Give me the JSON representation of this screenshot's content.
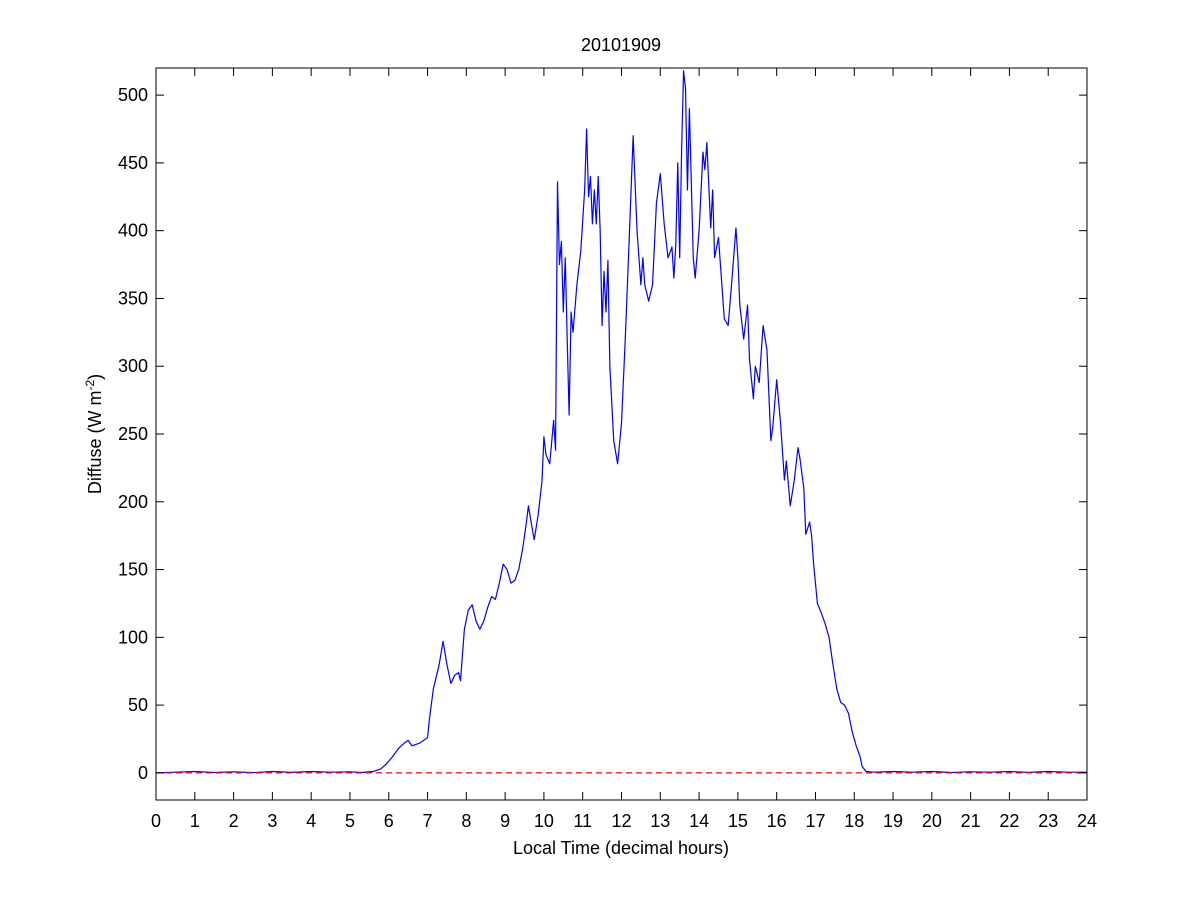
{
  "chart_data": {
    "type": "line",
    "title": "20101909",
    "xlabel": "Local Time (decimal hours)",
    "ylabel": "Diffuse (W m",
    "ylabel_sup": "-2",
    "ylabel_close": ")",
    "xlim": [
      0,
      24
    ],
    "ylim": [
      -20,
      520
    ],
    "xticks": [
      0,
      1,
      2,
      3,
      4,
      5,
      6,
      7,
      8,
      9,
      10,
      11,
      12,
      13,
      14,
      15,
      16,
      17,
      18,
      19,
      20,
      21,
      22,
      23,
      24
    ],
    "yticks": [
      0,
      50,
      100,
      150,
      200,
      250,
      300,
      350,
      400,
      450,
      500
    ],
    "grid": false,
    "legend": "none",
    "colors": {
      "series": "#0000ff",
      "reference": "#ff0000"
    },
    "series": [
      {
        "points": [
          [
            0,
            0
          ],
          [
            0.5,
            0.5
          ],
          [
            1,
            1
          ],
          [
            1.5,
            0.3
          ],
          [
            2,
            0.8
          ],
          [
            2.5,
            0.2
          ],
          [
            3,
            1
          ],
          [
            3.5,
            0.4
          ],
          [
            4,
            1
          ],
          [
            4.5,
            0.5
          ],
          [
            5,
            0.8
          ],
          [
            5.3,
            0.3
          ],
          [
            5.6,
            1
          ],
          [
            5.8,
            3
          ],
          [
            5.95,
            7
          ],
          [
            6.1,
            12
          ],
          [
            6.25,
            18
          ],
          [
            6.4,
            22
          ],
          [
            6.5,
            24
          ],
          [
            6.6,
            20
          ],
          [
            6.8,
            22
          ],
          [
            7,
            26
          ],
          [
            7.05,
            40
          ],
          [
            7.15,
            62
          ],
          [
            7.3,
            80
          ],
          [
            7.4,
            97
          ],
          [
            7.5,
            80
          ],
          [
            7.6,
            66
          ],
          [
            7.7,
            72
          ],
          [
            7.8,
            74
          ],
          [
            7.85,
            68
          ],
          [
            7.95,
            106
          ],
          [
            8.05,
            120
          ],
          [
            8.15,
            124
          ],
          [
            8.25,
            112
          ],
          [
            8.35,
            106
          ],
          [
            8.45,
            112
          ],
          [
            8.55,
            122
          ],
          [
            8.65,
            130
          ],
          [
            8.75,
            128
          ],
          [
            8.85,
            140
          ],
          [
            8.95,
            154
          ],
          [
            9.05,
            150
          ],
          [
            9.15,
            140
          ],
          [
            9.25,
            142
          ],
          [
            9.35,
            150
          ],
          [
            9.45,
            165
          ],
          [
            9.55,
            185
          ],
          [
            9.6,
            197
          ],
          [
            9.7,
            180
          ],
          [
            9.75,
            172
          ],
          [
            9.85,
            190
          ],
          [
            9.95,
            215
          ],
          [
            10.0,
            248
          ],
          [
            10.05,
            235
          ],
          [
            10.15,
            228
          ],
          [
            10.25,
            260
          ],
          [
            10.3,
            238
          ],
          [
            10.35,
            436
          ],
          [
            10.4,
            375
          ],
          [
            10.45,
            392
          ],
          [
            10.5,
            340
          ],
          [
            10.55,
            380
          ],
          [
            10.6,
            320
          ],
          [
            10.65,
            264
          ],
          [
            10.7,
            340
          ],
          [
            10.75,
            325
          ],
          [
            10.85,
            360
          ],
          [
            10.95,
            385
          ],
          [
            11.05,
            430
          ],
          [
            11.1,
            475
          ],
          [
            11.15,
            425
          ],
          [
            11.2,
            440
          ],
          [
            11.25,
            405
          ],
          [
            11.3,
            430
          ],
          [
            11.35,
            405
          ],
          [
            11.4,
            440
          ],
          [
            11.45,
            400
          ],
          [
            11.5,
            330
          ],
          [
            11.55,
            370
          ],
          [
            11.6,
            340
          ],
          [
            11.65,
            378
          ],
          [
            11.7,
            300
          ],
          [
            11.8,
            245
          ],
          [
            11.9,
            228
          ],
          [
            12.0,
            258
          ],
          [
            12.1,
            322
          ],
          [
            12.2,
            395
          ],
          [
            12.3,
            470
          ],
          [
            12.4,
            400
          ],
          [
            12.5,
            360
          ],
          [
            12.55,
            380
          ],
          [
            12.6,
            360
          ],
          [
            12.7,
            348
          ],
          [
            12.8,
            360
          ],
          [
            12.9,
            420
          ],
          [
            13.0,
            442
          ],
          [
            13.1,
            405
          ],
          [
            13.2,
            380
          ],
          [
            13.3,
            388
          ],
          [
            13.35,
            365
          ],
          [
            13.4,
            390
          ],
          [
            13.45,
            450
          ],
          [
            13.5,
            380
          ],
          [
            13.55,
            460
          ],
          [
            13.6,
            518
          ],
          [
            13.65,
            505
          ],
          [
            13.7,
            430
          ],
          [
            13.75,
            490
          ],
          [
            13.85,
            380
          ],
          [
            13.9,
            365
          ],
          [
            14.0,
            400
          ],
          [
            14.1,
            458
          ],
          [
            14.15,
            445
          ],
          [
            14.2,
            465
          ],
          [
            14.3,
            402
          ],
          [
            14.35,
            430
          ],
          [
            14.4,
            380
          ],
          [
            14.5,
            395
          ],
          [
            14.6,
            355
          ],
          [
            14.65,
            335
          ],
          [
            14.75,
            330
          ],
          [
            14.85,
            365
          ],
          [
            14.95,
            402
          ],
          [
            15.0,
            380
          ],
          [
            15.05,
            345
          ],
          [
            15.15,
            320
          ],
          [
            15.25,
            345
          ],
          [
            15.3,
            305
          ],
          [
            15.4,
            276
          ],
          [
            15.45,
            300
          ],
          [
            15.55,
            288
          ],
          [
            15.65,
            330
          ],
          [
            15.75,
            312
          ],
          [
            15.85,
            245
          ],
          [
            15.9,
            255
          ],
          [
            16.0,
            290
          ],
          [
            16.1,
            258
          ],
          [
            16.2,
            216
          ],
          [
            16.25,
            230
          ],
          [
            16.35,
            197
          ],
          [
            16.45,
            215
          ],
          [
            16.55,
            240
          ],
          [
            16.6,
            232
          ],
          [
            16.7,
            210
          ],
          [
            16.75,
            176
          ],
          [
            16.85,
            185
          ],
          [
            16.9,
            175
          ],
          [
            16.95,
            155
          ],
          [
            17.05,
            125
          ],
          [
            17.15,
            118
          ],
          [
            17.25,
            110
          ],
          [
            17.35,
            100
          ],
          [
            17.45,
            80
          ],
          [
            17.55,
            62
          ],
          [
            17.65,
            52
          ],
          [
            17.75,
            50
          ],
          [
            17.85,
            44
          ],
          [
            17.95,
            30
          ],
          [
            18.05,
            20
          ],
          [
            18.15,
            12
          ],
          [
            18.2,
            5
          ],
          [
            18.3,
            1
          ],
          [
            18.5,
            0.5
          ],
          [
            19,
            1
          ],
          [
            19.5,
            0.5
          ],
          [
            20,
            1
          ],
          [
            20.5,
            0.3
          ],
          [
            21,
            0.8
          ],
          [
            21.5,
            0.5
          ],
          [
            22,
            1
          ],
          [
            22.5,
            0.4
          ],
          [
            23,
            1
          ],
          [
            23.5,
            0.5
          ],
          [
            24,
            0.5
          ]
        ]
      }
    ],
    "reference_line": {
      "y": 0,
      "style": "dashed"
    }
  }
}
